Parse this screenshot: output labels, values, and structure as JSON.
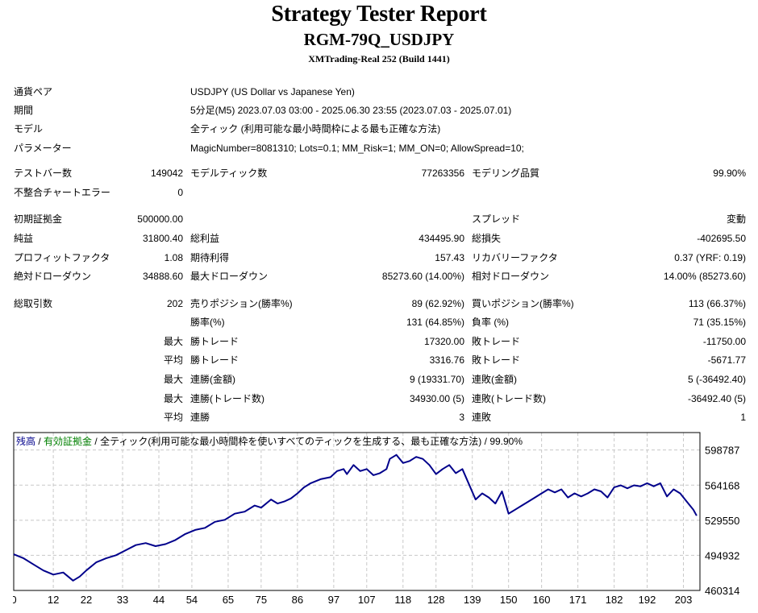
{
  "header": {
    "title": "Strategy Tester Report",
    "subtitle": "RGM-79Q_USDJPY",
    "server": "XMTrading-Real 252 (Build 1441)"
  },
  "info": {
    "pair_label": "通貨ペア",
    "pair_value": "USDJPY (US Dollar vs Japanese Yen)",
    "period_label": "期間",
    "period_value": "5分足(M5) 2023.07.03 03:00 - 2025.06.30 23:55 (2023.07.03 - 2025.07.01)",
    "model_label": "モデル",
    "model_value": "全ティック (利用可能な最小時間枠による最も正確な方法)",
    "params_label": "パラメーター",
    "params_value": "MagicNumber=8081310; Lots=0.1; MM_Risk=1; MM_ON=0; AllowSpread=10;"
  },
  "stats": {
    "bars_label": "テストバー数",
    "bars_value": "149042",
    "ticks_label": "モデルティック数",
    "ticks_value": "77263356",
    "quality_label": "モデリング品質",
    "quality_value": "99.90%",
    "mismatch_label": "不整合チャートエラー",
    "mismatch_value": "0",
    "deposit_label": "初期証拠金",
    "deposit_value": "500000.00",
    "spread_label": "スプレッド",
    "spread_value": "変動",
    "net_label": "純益",
    "net_value": "31800.40",
    "gross_profit_label": "総利益",
    "gross_profit_value": "434495.90",
    "gross_loss_label": "総損失",
    "gross_loss_value": "-402695.50",
    "pf_label": "プロフィットファクタ",
    "pf_value": "1.08",
    "expected_label": "期待利得",
    "expected_value": "157.43",
    "recovery_label": "リカバリーファクタ",
    "recovery_value": "0.37 (YRF: 0.19)",
    "abs_dd_label": "絶対ドローダウン",
    "abs_dd_value": "34888.60",
    "max_dd_label": "最大ドローダウン",
    "max_dd_value": "85273.60 (14.00%)",
    "rel_dd_label": "相対ドローダウン",
    "rel_dd_value": "14.00% (85273.60)",
    "total_label": "総取引数",
    "total_value": "202",
    "short_label": "売りポジション(勝率%)",
    "short_value": "89 (62.92%)",
    "long_label": "買いポジション(勝率%)",
    "long_value": "113 (66.37%)",
    "win_label": "勝率(%)",
    "win_value": "131 (64.85%)",
    "loss_label": "負率 (%)",
    "loss_value": "71 (35.15%)",
    "max_prefix": "最大",
    "avg_prefix": "平均",
    "max_win_label": "勝トレード",
    "max_win_value": "17320.00",
    "max_loss_label": "敗トレード",
    "max_loss_value": "-11750.00",
    "avg_win_label": "勝トレード",
    "avg_win_value": "3316.76",
    "avg_loss_label": "敗トレード",
    "avg_loss_value": "-5671.77",
    "cw_money_label": "連勝(金額)",
    "cw_money_value": "9 (19331.70)",
    "cl_money_label": "連敗(金額)",
    "cl_money_value": "5 (-36492.40)",
    "cw_trades_label": "連勝(トレード数)",
    "cw_trades_value": "34930.00 (5)",
    "cl_trades_label": "連敗(トレード数)",
    "cl_trades_value": "-36492.40 (5)",
    "avg_cw_label": "連勝",
    "avg_cw_value": "3",
    "avg_cl_label": "連敗",
    "avg_cl_value": "1"
  },
  "chart_data": {
    "type": "line",
    "legend_balance": "残高",
    "legend_sep1": " / ",
    "legend_equity": "有効証拠金",
    "legend_sep2": " / ",
    "legend_model": "全ティック(利用可能な最小時間枠を使いすべてのティックを生成する、最も正確な方法)",
    "legend_sep3": " / ",
    "legend_quality": "99.90%",
    "colors": {
      "balance": "#00008b",
      "equity": "#008000",
      "grid": "#c8c8c8"
    },
    "grid": true,
    "xlim": [
      0,
      208
    ],
    "ylim": [
      460314,
      616000
    ],
    "x_ticks": [
      0,
      12,
      22,
      33,
      44,
      54,
      65,
      75,
      86,
      97,
      107,
      118,
      128,
      139,
      150,
      160,
      171,
      182,
      192,
      203
    ],
    "y_ticks": [
      598787,
      564168,
      529550,
      494932,
      460314
    ],
    "series": [
      {
        "x": [
          0,
          3,
          6,
          9,
          12,
          15,
          18,
          20,
          22,
          25,
          28,
          31,
          34,
          37,
          40,
          43,
          46,
          49,
          52,
          55,
          58,
          61,
          64,
          67,
          70,
          73,
          75,
          78,
          80,
          82,
          84,
          86,
          88,
          90,
          93,
          96,
          98,
          100,
          101,
          103,
          105,
          107,
          109,
          111,
          113,
          114,
          116,
          118,
          120,
          122,
          124,
          126,
          128,
          130,
          132,
          134,
          136,
          138,
          140,
          142,
          144,
          146,
          148,
          150,
          152,
          154,
          156,
          158,
          160,
          162,
          164,
          166,
          168,
          170,
          172,
          174,
          176,
          178,
          180,
          182,
          184,
          186,
          188,
          190,
          192,
          194,
          196,
          198,
          200,
          202,
          204,
          206,
          207
        ],
        "y": [
          496000,
          492000,
          486000,
          480000,
          476000,
          478000,
          470000,
          474000,
          480000,
          488000,
          492000,
          495000,
          500000,
          505000,
          507000,
          504000,
          506000,
          510000,
          516000,
          520000,
          522000,
          528000,
          530000,
          536000,
          538000,
          544000,
          542000,
          550000,
          546000,
          548000,
          551000,
          556000,
          562000,
          566000,
          570000,
          572000,
          578000,
          580000,
          575000,
          584000,
          578000,
          580000,
          574000,
          576000,
          580000,
          590000,
          594000,
          586000,
          588000,
          592000,
          590000,
          584000,
          575000,
          580000,
          584000,
          576000,
          580000,
          565000,
          550000,
          556000,
          552000,
          546000,
          558000,
          536000,
          540000,
          544000,
          548000,
          552000,
          556000,
          560000,
          557000,
          560000,
          552000,
          556000,
          553000,
          556000,
          560000,
          558000,
          552000,
          562000,
          564000,
          561000,
          564000,
          563000,
          566000,
          563000,
          566000,
          553000,
          560000,
          556000,
          548000,
          540000,
          534000
        ]
      }
    ]
  }
}
